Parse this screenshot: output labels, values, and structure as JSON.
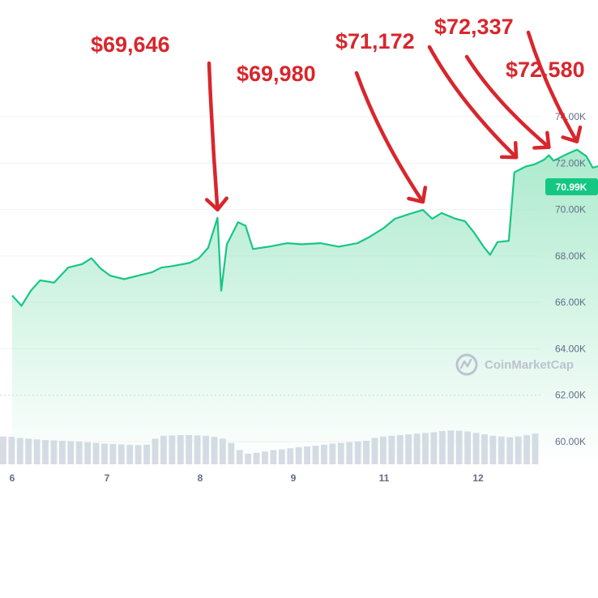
{
  "chart_data": {
    "type": "area",
    "title": "",
    "xlabel": "",
    "ylabel": "",
    "x_ticks": [
      "6",
      "7",
      "8",
      "9",
      "11",
      "12"
    ],
    "y_ticks": [
      "74.00K",
      "72.00K",
      "70.00K",
      "68.00K",
      "66.00K",
      "64.00K",
      "62.00K",
      "60.00K"
    ],
    "ylim": [
      59500,
      74800
    ],
    "current_price_label": "70.99K",
    "current_price": 70990,
    "watermark": "CoinMarketCap",
    "colors": {
      "line": "#16c784",
      "area_top": "#a8e9cb",
      "volume": "#d6dbe4",
      "annotation": "#d8262d",
      "tick_text": "#616e85"
    },
    "series": [
      {
        "values": [
          [
            0.0,
            66300
          ],
          [
            0.1,
            65850
          ],
          [
            0.2,
            66500
          ],
          [
            0.3,
            66950
          ],
          [
            0.45,
            66850
          ],
          [
            0.6,
            67500
          ],
          [
            0.75,
            67650
          ],
          [
            0.85,
            67900
          ],
          [
            0.95,
            67450
          ],
          [
            1.05,
            67150
          ],
          [
            1.2,
            67000
          ],
          [
            1.35,
            67150
          ],
          [
            1.5,
            67300
          ],
          [
            1.6,
            67500
          ],
          [
            1.7,
            67550
          ],
          [
            1.9,
            67700
          ],
          [
            2.0,
            67900
          ],
          [
            2.1,
            68350
          ],
          [
            2.2,
            69646
          ],
          [
            2.24,
            66500
          ],
          [
            2.3,
            68500
          ],
          [
            2.42,
            69450
          ],
          [
            2.5,
            69300
          ],
          [
            2.58,
            68300
          ],
          [
            2.75,
            68400
          ],
          [
            2.95,
            68550
          ],
          [
            3.1,
            68500
          ],
          [
            3.3,
            68550
          ],
          [
            3.5,
            68400
          ],
          [
            3.7,
            68550
          ],
          [
            3.82,
            68800
          ],
          [
            3.98,
            69200
          ],
          [
            4.1,
            69600
          ],
          [
            4.25,
            69800
          ],
          [
            4.4,
            69980
          ],
          [
            4.5,
            69600
          ],
          [
            4.6,
            69850
          ],
          [
            4.75,
            69600
          ],
          [
            4.85,
            69500
          ],
          [
            4.95,
            69000
          ],
          [
            5.05,
            68400
          ],
          [
            5.12,
            68050
          ],
          [
            5.2,
            68600
          ],
          [
            5.32,
            68650
          ],
          [
            5.38,
            71600
          ],
          [
            5.5,
            71850
          ],
          [
            5.6,
            71950
          ],
          [
            5.7,
            72150
          ],
          [
            5.75,
            72337
          ],
          [
            5.8,
            72100
          ],
          [
            5.95,
            72400
          ],
          [
            6.05,
            72580
          ],
          [
            6.15,
            72300
          ],
          [
            6.22,
            71800
          ],
          [
            6.35,
            71950
          ],
          [
            6.5,
            71850
          ],
          [
            6.62,
            72000
          ],
          [
            6.7,
            71850
          ],
          [
            6.75,
            72300
          ],
          [
            6.82,
            70600
          ],
          [
            6.87,
            70000
          ],
          [
            6.92,
            70500
          ],
          [
            7.0,
            71150
          ],
          [
            7.05,
            70990
          ]
        ]
      }
    ],
    "volume": [
      0.78,
      0.77,
      0.74,
      0.72,
      0.7,
      0.68,
      0.67,
      0.66,
      0.65,
      0.64,
      0.62,
      0.6,
      0.58,
      0.57,
      0.56,
      0.55,
      0.54,
      0.55,
      0.72,
      0.8,
      0.81,
      0.82,
      0.82,
      0.81,
      0.8,
      0.77,
      0.72,
      0.6,
      0.4,
      0.3,
      0.32,
      0.36,
      0.4,
      0.42,
      0.45,
      0.48,
      0.5,
      0.52,
      0.55,
      0.58,
      0.6,
      0.62,
      0.64,
      0.66,
      0.74,
      0.78,
      0.8,
      0.82,
      0.84,
      0.86,
      0.88,
      0.9,
      0.93,
      0.95,
      0.94,
      0.92,
      0.88,
      0.84,
      0.8,
      0.78,
      0.76,
      0.78,
      0.82,
      0.86
    ],
    "annotations": [
      {
        "text": "$69,646",
        "target_x": 2.2,
        "target_y": 69646
      },
      {
        "text": "$69,980",
        "target_x": 4.4,
        "target_y": 69980
      },
      {
        "text": "$71,172",
        "target_x": 5.4,
        "target_y": 71900
      },
      {
        "text": "$72,337",
        "target_x": 5.75,
        "target_y": 72337
      },
      {
        "text": "$72,580",
        "target_x": 6.05,
        "target_y": 72580
      }
    ]
  }
}
